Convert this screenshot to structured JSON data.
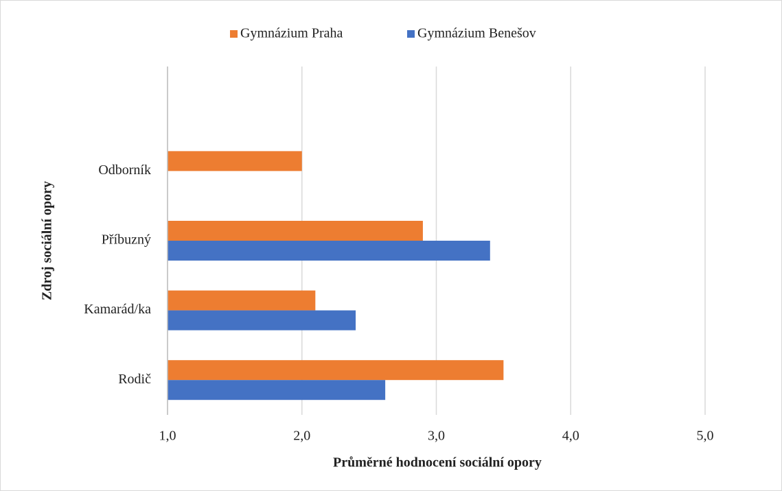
{
  "chart_data": {
    "type": "bar",
    "orientation": "horizontal",
    "x_label": "Průměrné hodnocení  sociální opory",
    "y_label": "Zdroj sociální opory",
    "categories": [
      "Rodič",
      "Kamarád/ka",
      "Příbuzný",
      "Odborník",
      null
    ],
    "series": [
      {
        "name": "Gymnázium Praha",
        "color": "#ed7d31",
        "values": [
          3.5,
          2.1,
          2.9,
          2.0,
          null
        ]
      },
      {
        "name": "Gymnázium Benešov",
        "color": "#4472c4",
        "values": [
          2.62,
          2.4,
          3.4,
          null,
          null
        ]
      }
    ],
    "xlim": [
      1,
      5
    ],
    "xticks": [
      {
        "value": 1,
        "label": "1,0"
      },
      {
        "value": 2,
        "label": "2,0"
      },
      {
        "value": 3,
        "label": "3,0"
      },
      {
        "value": 4,
        "label": "4,0"
      },
      {
        "value": 5,
        "label": "5,0"
      }
    ],
    "grid": true,
    "legend": "top"
  }
}
